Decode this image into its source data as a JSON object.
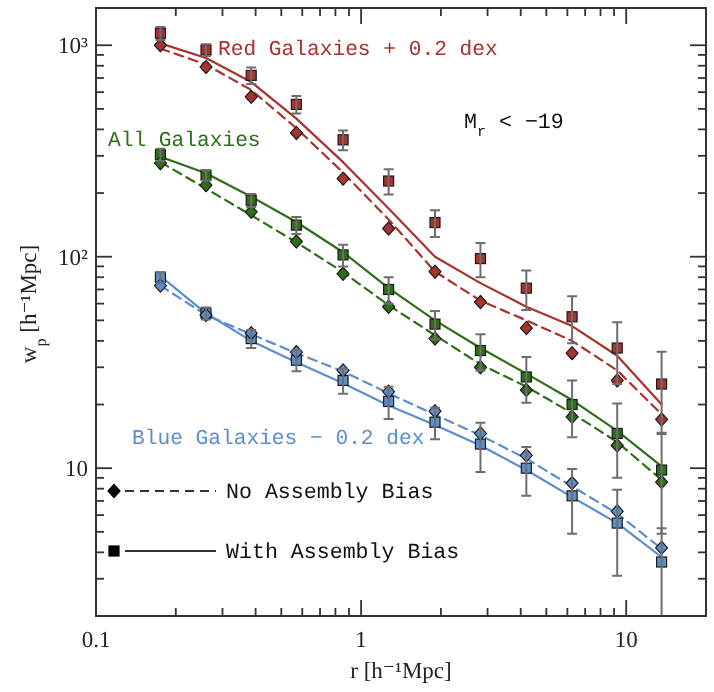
{
  "chart_data": {
    "type": "scatter",
    "xlabel": "r [h⁻¹Mpc]",
    "ylabel": "w$_{p}$ [h⁻¹Mpc]",
    "log": "xy",
    "xlim": [
      0.1,
      20
    ],
    "ylim": [
      2,
      1500
    ],
    "xticks": [
      0.1,
      {
        "value": 0.2,
        "label": null
      },
      {
        "value": 0.3,
        "label": null
      },
      {
        "value": 0.4,
        "label": null
      },
      {
        "value": 0.5,
        "label": null
      },
      {
        "value": 0.6,
        "label": null
      },
      {
        "value": 0.7,
        "label": null
      },
      {
        "value": 0.8,
        "label": null
      },
      {
        "value": 0.9,
        "label": null
      },
      1,
      {
        "value": 2,
        "label": null
      },
      {
        "value": 3,
        "label": null
      },
      {
        "value": 4,
        "label": null
      },
      {
        "value": 5,
        "label": null
      },
      {
        "value": 6,
        "label": null
      },
      {
        "value": 7,
        "label": null
      },
      {
        "value": 8,
        "label": null
      },
      {
        "value": 9,
        "label": null
      },
      10
    ],
    "yticks": [
      {
        "value": 3,
        "label": null
      },
      {
        "value": 4,
        "label": null
      },
      {
        "value": 5,
        "label": null
      },
      {
        "value": 6,
        "label": null
      },
      {
        "value": 7,
        "label": null
      },
      {
        "value": 8,
        "label": null
      },
      {
        "value": 9,
        "label": null
      },
      10,
      {
        "value": 20,
        "label": null
      },
      {
        "value": 30,
        "label": null
      },
      {
        "value": 40,
        "label": null
      },
      {
        "value": 50,
        "label": null
      },
      {
        "value": 60,
        "label": null
      },
      {
        "value": 70,
        "label": null
      },
      {
        "value": 80,
        "label": null
      },
      {
        "value": 90,
        "label": null
      },
      {
        "value": 100,
        "label": "10²"
      },
      {
        "value": 200,
        "label": null
      },
      {
        "value": 300,
        "label": null
      },
      {
        "value": 400,
        "label": null
      },
      {
        "value": 500,
        "label": null
      },
      {
        "value": 600,
        "label": null
      },
      {
        "value": 700,
        "label": null
      },
      {
        "value": 800,
        "label": null
      },
      {
        "value": 900,
        "label": null
      },
      {
        "value": 1000,
        "label": "10³"
      }
    ],
    "x": [
      0.175,
      0.26,
      0.385,
      0.57,
      0.855,
      1.27,
      1.9,
      2.82,
      4.2,
      6.25,
      9.25,
      13.6
    ],
    "series": [
      {
        "name": "Red Galaxies + 0.2 dex",
        "marker": "square",
        "color": "#a8322c",
        "values": [
          1140,
          950,
          720,
          525,
          357,
          228,
          145,
          98,
          71,
          52,
          37,
          25
        ],
        "errors": [
          80,
          60,
          65,
          50,
          38,
          31,
          21,
          18,
          15,
          13,
          12,
          10.5
        ]
      },
      {
        "marker": "diamond",
        "color": "#a8322c",
        "values": [
          1000,
          790,
          570,
          385,
          234,
          136,
          85,
          61,
          46,
          35,
          26,
          17
        ]
      },
      {
        "type": "line",
        "line_style": "solid",
        "color": "#a8322c",
        "values": [
          1020,
          870,
          670,
          450,
          280,
          169,
          100,
          75,
          58,
          47,
          34,
          20
        ]
      },
      {
        "type": "line",
        "line_style": "dashed",
        "color": "#a8322c",
        "values": [
          965,
          810,
          615,
          405,
          250,
          150,
          85,
          62,
          50,
          40,
          29,
          18
        ]
      },
      {
        "name": "All Galaxies",
        "marker": "square",
        "color": "#2e6e16",
        "values": [
          304,
          243,
          185,
          141,
          102,
          70,
          48,
          36,
          27,
          20,
          14.6,
          9.8
        ],
        "errors": [
          20,
          14,
          13,
          13,
          12,
          10,
          7.4,
          7,
          6.6,
          6,
          5.6,
          4.9
        ]
      },
      {
        "marker": "diamond",
        "color": "#2e6e16",
        "values": [
          277,
          218,
          163,
          118,
          83,
          58,
          41,
          30,
          23.4,
          17.5,
          12.8,
          8.6
        ]
      },
      {
        "type": "line",
        "line_style": "solid",
        "color": "#2e6e16",
        "values": [
          297,
          248,
          192,
          146,
          105,
          71,
          50,
          37,
          28,
          21,
          15,
          10.2
        ]
      },
      {
        "type": "line",
        "line_style": "dashed",
        "color": "#2e6e16",
        "values": [
          280,
          210,
          157,
          117,
          84.5,
          59,
          42.5,
          31,
          24.3,
          18.2,
          13.3,
          8.8
        ]
      },
      {
        "name": "Blue Galaxies − 0.2 dex",
        "marker": "square",
        "color": "#5b8fcc",
        "values": [
          80,
          54,
          41,
          32.4,
          26,
          20.7,
          16.5,
          13,
          10,
          7.4,
          5.5,
          3.6
        ],
        "errors": [
          4.5,
          3.5,
          4,
          3.7,
          3.5,
          3.6,
          2.8,
          3.4,
          2.6,
          2.5,
          2.4,
          1.6
        ]
      },
      {
        "marker": "diamond",
        "color": "#5b8fcc",
        "values": [
          73,
          53,
          43.5,
          35.4,
          29,
          23,
          18.6,
          14.6,
          11.5,
          8.5,
          6.25,
          4.2
        ]
      },
      {
        "type": "line",
        "line_style": "solid",
        "color": "#5b8fcc",
        "values": [
          81,
          54,
          40,
          31.7,
          25.2,
          19.8,
          16,
          12.8,
          9.8,
          7.3,
          5.5,
          3.8
        ]
      },
      {
        "type": "line",
        "line_style": "dashed",
        "color": "#5b8fcc",
        "values": [
          73,
          53,
          43,
          35,
          28.7,
          22.6,
          17.9,
          14.3,
          11.1,
          8.2,
          6.1,
          4.16
        ]
      }
    ],
    "annotations": [
      "M$_{r}$ < −19",
      "No Assembly Bias",
      "With Assembly Bias"
    ]
  }
}
